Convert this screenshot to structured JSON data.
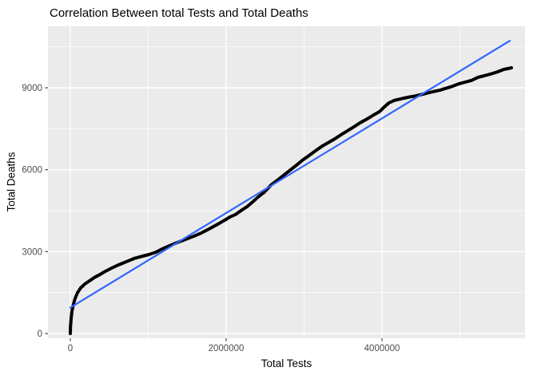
{
  "chart_data": {
    "type": "scatter",
    "title": "Correlation Between total Tests and Total Deaths",
    "xlabel": "Total Tests",
    "ylabel": "Total Deaths",
    "xlim": [
      -287000,
      5835000
    ],
    "ylim": [
      -175,
      11250
    ],
    "grid": true,
    "legend_position": "none",
    "x_ticks": [
      {
        "value": 0,
        "label": "0"
      },
      {
        "value": 2000000,
        "label": "2000000"
      },
      {
        "value": 4000000,
        "label": "4000000"
      }
    ],
    "x_minor_ticks": [
      1000000,
      3000000,
      5000000
    ],
    "y_ticks": [
      {
        "value": 0,
        "label": "0"
      },
      {
        "value": 3000,
        "label": "3000"
      },
      {
        "value": 6000,
        "label": "6000"
      },
      {
        "value": 9000,
        "label": "9000"
      }
    ],
    "y_minor_ticks": [
      1500,
      4500,
      7500,
      10500
    ],
    "colors": {
      "panel_background": "#EBEBEB",
      "grid": "#FFFFFF",
      "points": "#000000",
      "trend": "#3366FF",
      "tick_labels": "#4D4D4D",
      "tick_marks": "#333333",
      "title": "#000000"
    },
    "series": [
      {
        "name": "observations",
        "points": [
          [
            0,
            0
          ],
          [
            2000,
            230
          ],
          [
            10000,
            530
          ],
          [
            21000,
            820
          ],
          [
            41000,
            1080
          ],
          [
            62000,
            1290
          ],
          [
            92000,
            1490
          ],
          [
            133000,
            1670
          ],
          [
            185000,
            1810
          ],
          [
            246000,
            1930
          ],
          [
            308000,
            2050
          ],
          [
            379000,
            2160
          ],
          [
            451000,
            2280
          ],
          [
            533000,
            2400
          ],
          [
            615000,
            2510
          ],
          [
            718000,
            2630
          ],
          [
            820000,
            2750
          ],
          [
            923000,
            2830
          ],
          [
            1005000,
            2890
          ],
          [
            1100000,
            2980
          ],
          [
            1180000,
            3100
          ],
          [
            1270000,
            3210
          ],
          [
            1370000,
            3330
          ],
          [
            1480000,
            3450
          ],
          [
            1580000,
            3560
          ],
          [
            1680000,
            3680
          ],
          [
            1780000,
            3830
          ],
          [
            1890000,
            4000
          ],
          [
            1980000,
            4150
          ],
          [
            2050000,
            4270
          ],
          [
            2120000,
            4360
          ],
          [
            2190000,
            4500
          ],
          [
            2270000,
            4650
          ],
          [
            2340000,
            4820
          ],
          [
            2410000,
            5000
          ],
          [
            2490000,
            5180
          ],
          [
            2580000,
            5450
          ],
          [
            2660000,
            5620
          ],
          [
            2740000,
            5800
          ],
          [
            2820000,
            5980
          ],
          [
            2900000,
            6160
          ],
          [
            2980000,
            6350
          ],
          [
            3070000,
            6530
          ],
          [
            3150000,
            6700
          ],
          [
            3230000,
            6860
          ],
          [
            3310000,
            6990
          ],
          [
            3400000,
            7140
          ],
          [
            3480000,
            7290
          ],
          [
            3560000,
            7430
          ],
          [
            3640000,
            7570
          ],
          [
            3720000,
            7720
          ],
          [
            3810000,
            7860
          ],
          [
            3890000,
            8000
          ],
          [
            3970000,
            8130
          ],
          [
            4030000,
            8300
          ],
          [
            4090000,
            8450
          ],
          [
            4160000,
            8540
          ],
          [
            4250000,
            8600
          ],
          [
            4330000,
            8650
          ],
          [
            4410000,
            8690
          ],
          [
            4490000,
            8740
          ],
          [
            4570000,
            8800
          ],
          [
            4660000,
            8860
          ],
          [
            4740000,
            8910
          ],
          [
            4820000,
            8980
          ],
          [
            4900000,
            9050
          ],
          [
            4980000,
            9140
          ],
          [
            5070000,
            9210
          ],
          [
            5150000,
            9270
          ],
          [
            5230000,
            9380
          ],
          [
            5310000,
            9440
          ],
          [
            5390000,
            9500
          ],
          [
            5480000,
            9580
          ],
          [
            5560000,
            9670
          ],
          [
            5660000,
            9730
          ]
        ]
      }
    ],
    "trend_line": {
      "x1": 0,
      "y1": 950,
      "x2": 5640000,
      "y2": 10720
    }
  }
}
